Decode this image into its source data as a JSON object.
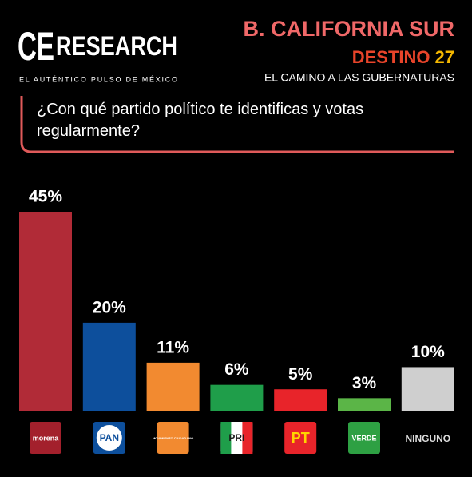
{
  "brand": {
    "name_a": "CE",
    "name_b": "RESEARCH",
    "tagline": "EL AUTÉNTICO PULSO DE MÉXICO"
  },
  "header": {
    "title": "B. CALIFORNIA SUR",
    "series_name": "DESTINO",
    "series_number": "27",
    "subtitle": "EL CAMINO A LAS GUBERNATURAS"
  },
  "chart_data": {
    "type": "bar",
    "title": "¿Con qué partido político te identificas y votas regularmente?",
    "categories": [
      "morena",
      "PAN",
      "MOVIMIENTO CIUDADANO",
      "PRI",
      "PT",
      "VERDE",
      "NINGUNO"
    ],
    "values": [
      45,
      20,
      11,
      6,
      5,
      3,
      10
    ],
    "value_labels": [
      "45%",
      "20%",
      "11%",
      "6%",
      "5%",
      "3%",
      "10%"
    ],
    "colors": [
      "#b12b37",
      "#0d4f9c",
      "#f28a30",
      "#1f9e4a",
      "#e8242a",
      "#5bb547",
      "#cfcfcf"
    ]
  }
}
